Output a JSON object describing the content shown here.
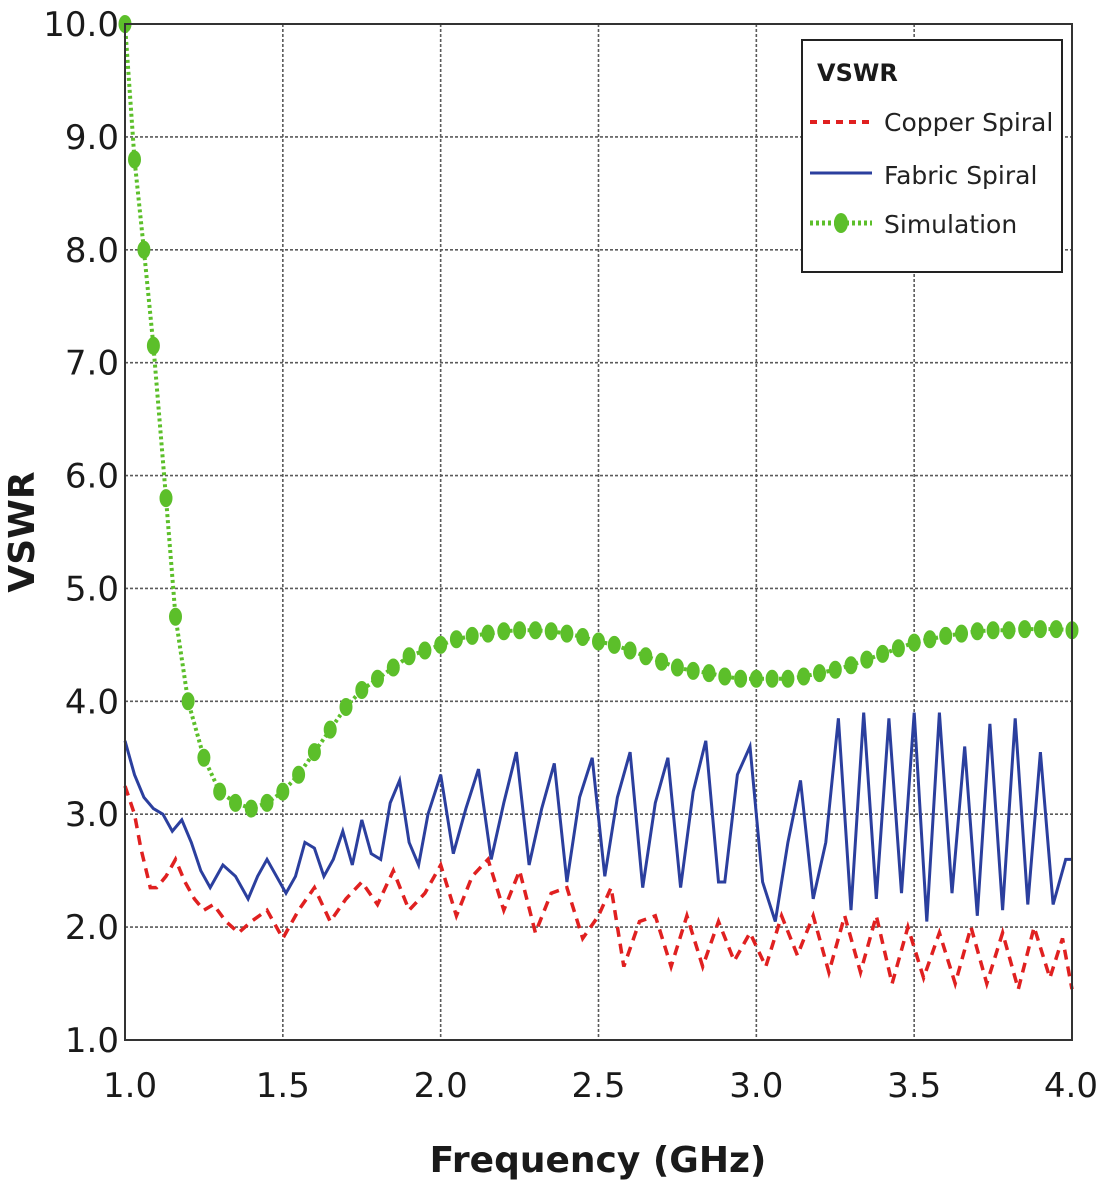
{
  "chart_data": {
    "type": "line",
    "xlabel": "Frequency (GHz)",
    "ylabel": "VSWR",
    "xlim": [
      1.0,
      4.0
    ],
    "ylim": [
      1.0,
      10.0
    ],
    "x_ticks": [
      "1.0",
      "1.5",
      "2.0",
      "2.5",
      "3.0",
      "3.5",
      "4.0"
    ],
    "y_ticks": [
      "1.0",
      "2.0",
      "3.0",
      "4.0",
      "5.0",
      "6.0",
      "7.0",
      "8.0",
      "9.0",
      "10.0"
    ],
    "grid": true,
    "legend": {
      "title": "VSWR",
      "position": "top-right"
    },
    "series": [
      {
        "name": "Copper Spiral",
        "color": "#e02020",
        "style": "dashed",
        "x": [
          1.0,
          1.03,
          1.05,
          1.08,
          1.1,
          1.13,
          1.16,
          1.19,
          1.22,
          1.25,
          1.28,
          1.32,
          1.36,
          1.4,
          1.45,
          1.5,
          1.55,
          1.6,
          1.65,
          1.7,
          1.75,
          1.8,
          1.85,
          1.9,
          1.95,
          2.0,
          2.05,
          2.1,
          2.15,
          2.2,
          2.25,
          2.3,
          2.35,
          2.4,
          2.45,
          2.5,
          2.54,
          2.58,
          2.63,
          2.68,
          2.73,
          2.78,
          2.83,
          2.88,
          2.93,
          2.98,
          3.03,
          3.08,
          3.13,
          3.18,
          3.23,
          3.28,
          3.33,
          3.38,
          3.43,
          3.48,
          3.53,
          3.58,
          3.63,
          3.68,
          3.73,
          3.78,
          3.83,
          3.88,
          3.93,
          3.97,
          4.0
        ],
        "values": [
          3.25,
          3.0,
          2.7,
          2.35,
          2.35,
          2.45,
          2.6,
          2.4,
          2.25,
          2.15,
          2.2,
          2.05,
          1.95,
          2.05,
          2.15,
          1.9,
          2.15,
          2.35,
          2.05,
          2.25,
          2.4,
          2.2,
          2.5,
          2.15,
          2.3,
          2.55,
          2.1,
          2.45,
          2.6,
          2.15,
          2.5,
          1.95,
          2.3,
          2.35,
          1.9,
          2.1,
          2.35,
          1.65,
          2.05,
          2.1,
          1.65,
          2.1,
          1.65,
          2.05,
          1.7,
          1.95,
          1.65,
          2.1,
          1.75,
          2.1,
          1.6,
          2.1,
          1.6,
          2.1,
          1.5,
          2.0,
          1.55,
          1.95,
          1.5,
          2.0,
          1.5,
          1.95,
          1.45,
          2.0,
          1.55,
          1.9,
          1.45
        ]
      },
      {
        "name": "Fabric Spiral",
        "color": "#2b3f9e",
        "style": "solid",
        "x": [
          1.0,
          1.03,
          1.06,
          1.09,
          1.12,
          1.15,
          1.18,
          1.21,
          1.24,
          1.27,
          1.31,
          1.35,
          1.39,
          1.42,
          1.45,
          1.48,
          1.51,
          1.54,
          1.57,
          1.6,
          1.63,
          1.66,
          1.69,
          1.72,
          1.75,
          1.78,
          1.81,
          1.84,
          1.87,
          1.9,
          1.93,
          1.96,
          2.0,
          2.04,
          2.08,
          2.12,
          2.16,
          2.2,
          2.24,
          2.28,
          2.32,
          2.36,
          2.4,
          2.44,
          2.48,
          2.52,
          2.56,
          2.6,
          2.64,
          2.68,
          2.72,
          2.76,
          2.8,
          2.84,
          2.88,
          2.9,
          2.94,
          2.98,
          3.02,
          3.06,
          3.1,
          3.14,
          3.18,
          3.22,
          3.26,
          3.3,
          3.34,
          3.38,
          3.42,
          3.46,
          3.5,
          3.54,
          3.58,
          3.62,
          3.66,
          3.7,
          3.74,
          3.78,
          3.82,
          3.86,
          3.9,
          3.94,
          3.98,
          4.0
        ],
        "values": [
          3.65,
          3.35,
          3.15,
          3.05,
          3.0,
          2.85,
          2.95,
          2.75,
          2.5,
          2.35,
          2.55,
          2.45,
          2.25,
          2.45,
          2.6,
          2.45,
          2.3,
          2.45,
          2.75,
          2.7,
          2.45,
          2.6,
          2.85,
          2.55,
          2.95,
          2.65,
          2.6,
          3.1,
          3.3,
          2.75,
          2.55,
          3.0,
          3.35,
          2.65,
          3.05,
          3.4,
          2.6,
          3.1,
          3.55,
          2.55,
          3.05,
          3.45,
          2.4,
          3.15,
          3.5,
          2.45,
          3.15,
          3.55,
          2.35,
          3.1,
          3.5,
          2.35,
          3.2,
          3.65,
          2.4,
          2.4,
          3.35,
          3.6,
          2.4,
          2.05,
          2.75,
          3.3,
          2.25,
          2.75,
          3.85,
          2.15,
          3.9,
          2.25,
          3.85,
          2.3,
          3.9,
          2.05,
          3.9,
          2.3,
          3.6,
          2.1,
          3.8,
          2.15,
          3.85,
          2.2,
          3.55,
          2.2,
          2.6,
          2.6
        ]
      },
      {
        "name": "Simulation",
        "color": "#5cbf2a",
        "style": "dotted-marker",
        "x": [
          1.0,
          1.03,
          1.06,
          1.09,
          1.13,
          1.16,
          1.2,
          1.25,
          1.3,
          1.35,
          1.4,
          1.45,
          1.5,
          1.55,
          1.6,
          1.65,
          1.7,
          1.75,
          1.8,
          1.85,
          1.9,
          1.95,
          2.0,
          2.05,
          2.1,
          2.15,
          2.2,
          2.25,
          2.3,
          2.35,
          2.4,
          2.45,
          2.5,
          2.55,
          2.6,
          2.65,
          2.7,
          2.75,
          2.8,
          2.85,
          2.9,
          2.95,
          3.0,
          3.05,
          3.1,
          3.15,
          3.2,
          3.25,
          3.3,
          3.35,
          3.4,
          3.45,
          3.5,
          3.55,
          3.6,
          3.65,
          3.7,
          3.75,
          3.8,
          3.85,
          3.9,
          3.95,
          4.0
        ],
        "values": [
          10.0,
          8.8,
          8.0,
          7.15,
          5.8,
          4.75,
          4.0,
          3.5,
          3.2,
          3.1,
          3.05,
          3.1,
          3.2,
          3.35,
          3.55,
          3.75,
          3.95,
          4.1,
          4.2,
          4.3,
          4.4,
          4.45,
          4.5,
          4.55,
          4.58,
          4.6,
          4.62,
          4.63,
          4.63,
          4.62,
          4.6,
          4.57,
          4.53,
          4.5,
          4.45,
          4.4,
          4.35,
          4.3,
          4.27,
          4.25,
          4.22,
          4.2,
          4.2,
          4.2,
          4.2,
          4.22,
          4.25,
          4.28,
          4.32,
          4.37,
          4.42,
          4.47,
          4.52,
          4.55,
          4.58,
          4.6,
          4.62,
          4.63,
          4.63,
          4.64,
          4.64,
          4.64,
          4.63
        ]
      }
    ]
  }
}
